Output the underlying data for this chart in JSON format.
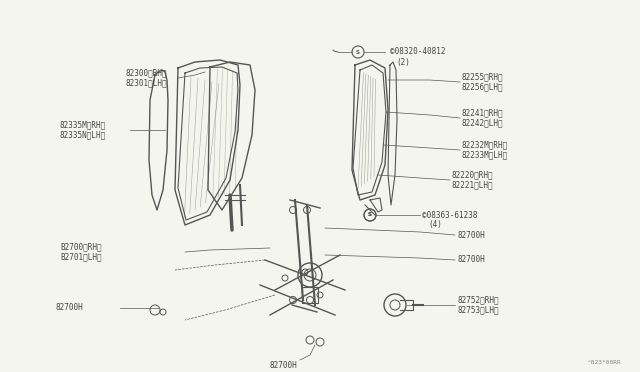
{
  "background_color": "#f5f5f0",
  "line_color": "#555555",
  "text_color": "#444444",
  "font_size": 5.5,
  "bottom_right_text": "^823*00RR",
  "parts_labels": {
    "82300_RH": "82300〈RH〉\n82301〈LH〉",
    "82335M_RH": "82335M〈RH〉\n82335N〈LH〉",
    "08320": "©08320-40812\n      ㈨2㈩",
    "82255": "82255〈RH〉\n82256〈LH〉",
    "82241": "82241〈RH〉\n82242〈LH〉",
    "82232M": "82232M〈RH〉\n82233M〈LH〉",
    "82220": "82220〈RH〉\n82221〈LH〉",
    "08363": "©08363-61238\n         ㈨4㈩",
    "82700H_a": "82700H",
    "82700H_b": "82700H",
    "B2700": "B2700〈RH〉\nB2701〈LH〉",
    "82700H_c": "82700H",
    "82700H_d": "82700H",
    "82752": "82752〈RH〉\n82753〈LH〉"
  }
}
